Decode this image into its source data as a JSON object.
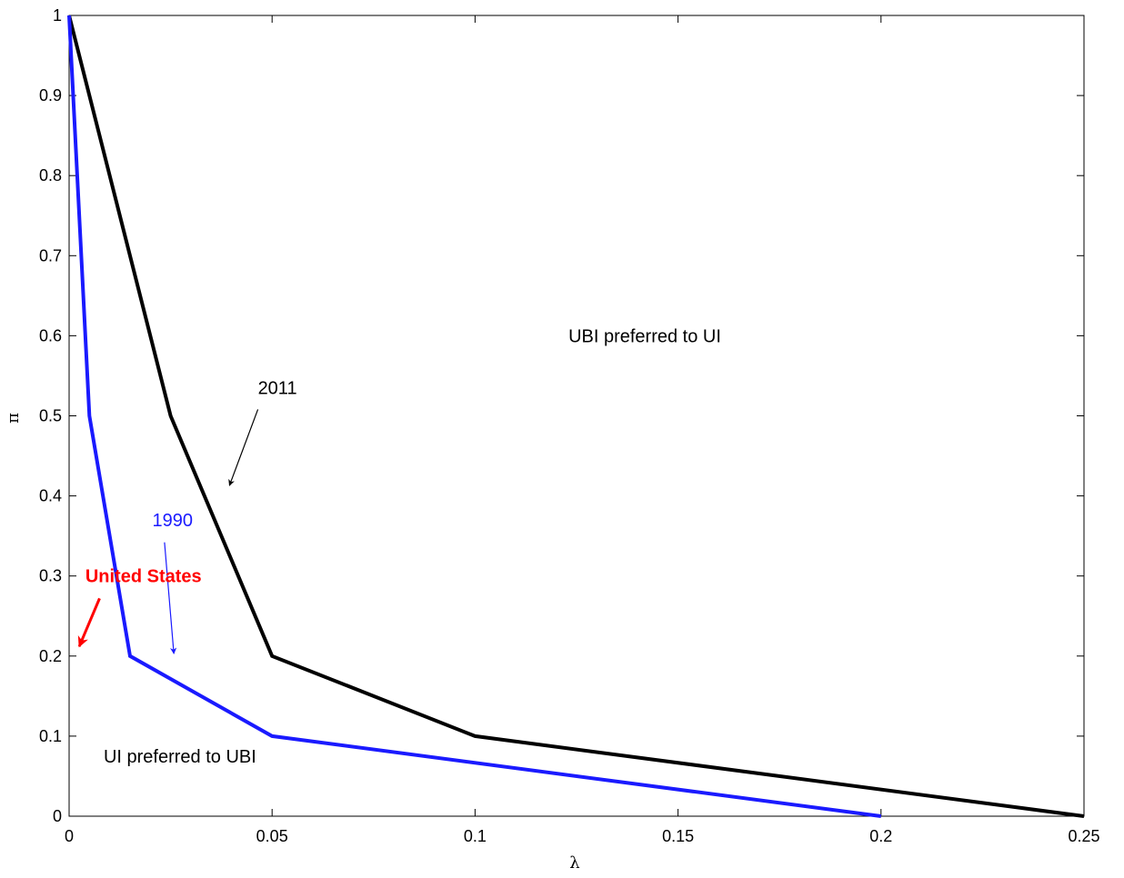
{
  "chart_data": {
    "type": "line",
    "title": "",
    "xlabel": "λ",
    "ylabel": "π",
    "xlim": [
      0,
      0.25
    ],
    "ylim": [
      0,
      1
    ],
    "x_ticks": [
      0,
      0.05,
      0.1,
      0.15,
      0.2,
      0.25
    ],
    "x_tick_labels": [
      "0",
      "0.05",
      "0.1",
      "0.15",
      "0.2",
      "0.25"
    ],
    "y_ticks": [
      0,
      0.1,
      0.2,
      0.3,
      0.4,
      0.5,
      0.6,
      0.7,
      0.8,
      0.9,
      1
    ],
    "y_tick_labels": [
      "0",
      "0.1",
      "0.2",
      "0.3",
      "0.4",
      "0.5",
      "0.6",
      "0.7",
      "0.8",
      "0.9",
      "1"
    ],
    "grid": false,
    "series": [
      {
        "color": "#000000",
        "x": [
          0,
          0.025,
          0.05,
          0.1,
          0.25
        ],
        "y": [
          1,
          0.5,
          0.2,
          0.1,
          0
        ]
      },
      {
        "color": "#1a1aff",
        "x": [
          0,
          0.005,
          0.015,
          0.05,
          0.2
        ],
        "y": [
          1,
          0.5,
          0.2,
          0.1,
          0
        ]
      }
    ],
    "annotations": [
      {
        "text": "UBI preferred to UI",
        "x": 0.123,
        "y": 0.6,
        "color": "#000000",
        "bold": false
      },
      {
        "text": "UI preferred to UBI",
        "x": 0.0085,
        "y": 0.075,
        "color": "#000000",
        "bold": false
      },
      {
        "text": "2011",
        "x": 0.0465,
        "y": 0.535,
        "color": "#000000",
        "bold": false
      },
      {
        "text": "1990",
        "x": 0.0205,
        "y": 0.37,
        "color": "#1a1aff",
        "bold": false
      },
      {
        "text": "United States",
        "x": 0.004,
        "y": 0.3,
        "color": "#ff0000",
        "bold": true
      }
    ],
    "arrows": [
      {
        "color": "#000000",
        "from": [
          0.0465,
          0.508
        ],
        "to": [
          0.0395,
          0.413
        ]
      },
      {
        "color": "#1a1aff",
        "from": [
          0.0235,
          0.342
        ],
        "to": [
          0.0258,
          0.203
        ]
      },
      {
        "color": "#ff0000",
        "from": [
          0.0075,
          0.272
        ],
        "to": [
          0.0025,
          0.212
        ]
      }
    ]
  }
}
